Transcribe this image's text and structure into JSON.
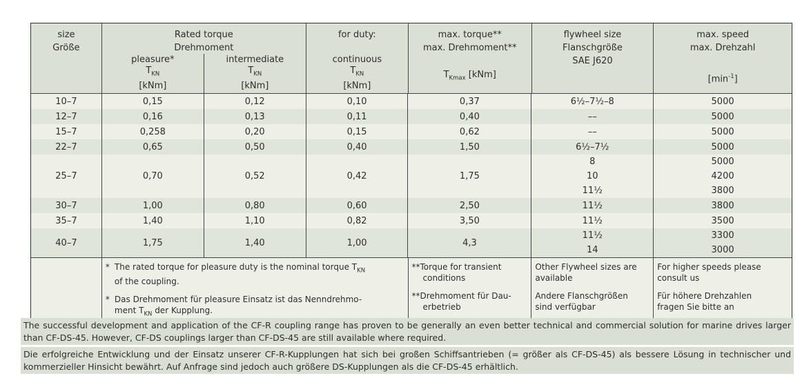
{
  "colors": {
    "header_bg": "#dae1d4",
    "stripe_dark": "#dfe5d9",
    "stripe_light": "#eef0e8",
    "footnote_bg": "#eef0e8",
    "bottom_bg": "#d9e0d3",
    "border": "#454545",
    "text": "#2d2d2d"
  },
  "header": {
    "size_en": "size",
    "size_de": "Größe",
    "rated_en": "Rated torque",
    "rated_de": "Drehmoment",
    "duty": "for duty:",
    "duty_cols": [
      {
        "name": "pleasure*",
        "t_base": "T",
        "t_sub": "KN",
        "unit": "[kNm]"
      },
      {
        "name": "intermediate",
        "t_base": "T",
        "t_sub": "KN",
        "unit": "[kNm]"
      },
      {
        "name": "continuous",
        "t_base": "T",
        "t_sub": "KN",
        "unit": "[kNm]"
      }
    ],
    "max_torque_en": "max. torque**",
    "max_torque_de": "max. Drehmoment**",
    "max_torque_sym": {
      "base": "T",
      "sub": "Kmax",
      "unit": " [kNm]"
    },
    "flywheel_en": "flywheel size",
    "flywheel_de": "Flanschgröße",
    "flywheel_std": "SAE J620",
    "speed_en": "max. speed",
    "speed_de": "max. Drehzahl",
    "speed_unit": {
      "pre": "[min",
      "sup": "-1",
      "post": "]"
    }
  },
  "rows": [
    {
      "size": "10–7",
      "pleasure": "0,15",
      "intermediate": "0,12",
      "continuous": "0,10",
      "max_torque": "0,37",
      "flywheel": "6½–7½–8",
      "speed": "5000"
    },
    {
      "size": "12–7",
      "pleasure": "0,16",
      "intermediate": "0,13",
      "continuous": "0,11",
      "max_torque": "0,40",
      "flywheel": "––",
      "speed": "5000"
    },
    {
      "size": "15–7",
      "pleasure": "0,258",
      "intermediate": "0,20",
      "continuous": "0,15",
      "max_torque": "0,62",
      "flywheel": "––",
      "speed": "5000"
    },
    {
      "size": "22–7",
      "pleasure": "0,65",
      "intermediate": "0,50",
      "continuous": "0,40",
      "max_torque": "1,50",
      "flywheel": "6½–7½",
      "speed": "5000"
    },
    {
      "size": "25–7",
      "pleasure": "0,70",
      "intermediate": "0,52",
      "continuous": "0,42",
      "max_torque": "1,75",
      "flywheel": "8\n10\n11½",
      "speed": "5000\n4200\n3800"
    },
    {
      "size": "30–7",
      "pleasure": "1,00",
      "intermediate": "0,80",
      "continuous": "0,60",
      "max_torque": "2,50",
      "flywheel": "11½",
      "speed": "3800"
    },
    {
      "size": "35–7",
      "pleasure": "1,40",
      "intermediate": "1,10",
      "continuous": "0,82",
      "max_torque": "3,50",
      "flywheel": "11½",
      "speed": "3500"
    },
    {
      "size": "40–7",
      "pleasure": "1,75",
      "intermediate": "1,40",
      "continuous": "1,00",
      "max_torque": "4,3",
      "flywheel": "11½\n14",
      "speed": "3300\n3000"
    }
  ],
  "footnotes": {
    "ast": "*",
    "star_en": {
      "pre": "The rated torque for pleasure duty is the nominal torque T",
      "sub": "KN",
      "post": "\nof the coupling."
    },
    "star_de": {
      "pre": "Das Drehmoment für pleasure Einsatz ist das Nenndrehmo-\nment T",
      "sub": "KN",
      "post": " der Kupplung."
    },
    "dstar_en": "**Torque for transient\nconditions",
    "dstar_de": "**Drehmoment für Dau-\nerbetrieb",
    "flywheel_en": "Other Flywheel sizes are\navailable",
    "flywheel_de": "Andere Flanschgrößen\nsind verfügbar",
    "speed_en": "For higher speeds please\nconsult us",
    "speed_de": "Für höhere Drehzahlen\nfragen Sie bitte an"
  },
  "paragraphs": {
    "en": "The successful development and application of the CF-R coupling range has proven to be generally an even better technical and commercial solution for marine drives larger than CF-DS-45. However, CF-DS couplings larger than CF-DS-45 are still available where required.",
    "de": "Die erfolgreiche Entwicklung und der Einsatz unserer CF-R-Kupplungen hat sich bei großen Schiffsantrieben (= größer als CF-DS-45) als bessere Lösung in technischer und kommerzieller Hinsicht bewährt. Auf Anfrage sind jedoch auch größere DS-Kupplungen als die CF-DS-45 erhältlich."
  }
}
